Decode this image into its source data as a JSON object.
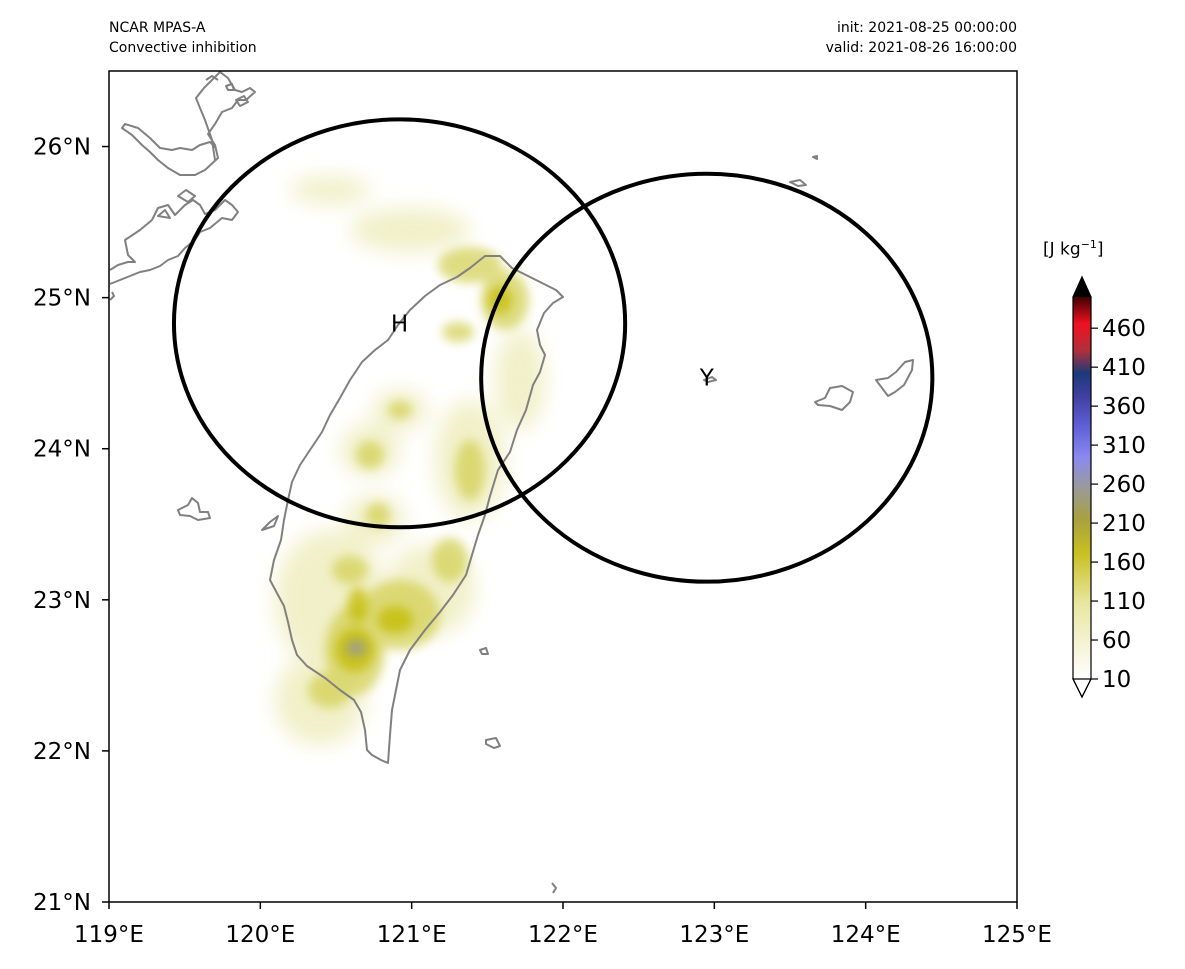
{
  "header": {
    "model": "NCAR MPAS-A",
    "field": "Convective inhibition",
    "init": "init: 2021-08-25 00:00:00",
    "valid": "valid: 2021-08-26 16:00:00"
  },
  "map": {
    "lon_range": [
      119,
      125
    ],
    "lat_range": [
      21,
      26.5
    ],
    "x_ticks": [
      "119°E",
      "120°E",
      "121°E",
      "122°E",
      "123°E",
      "124°E",
      "125°E"
    ],
    "y_ticks": [
      "21°N",
      "22°N",
      "23°N",
      "24°N",
      "25°N",
      "26°N"
    ],
    "coastline_color": "#808080"
  },
  "stations": [
    {
      "id": "H",
      "lon": 120.92,
      "lat": 24.83,
      "radius_deg_lat": 1.35
    },
    {
      "id": "Y",
      "lon": 122.95,
      "lat": 24.47,
      "radius_deg_lat": 1.35
    }
  ],
  "colorbar": {
    "units_main": "[J kg",
    "units_sup": "−1",
    "units_end": "]",
    "labels": [
      "10",
      "60",
      "110",
      "160",
      "210",
      "260",
      "310",
      "360",
      "410",
      "460"
    ],
    "range": [
      10,
      500
    ],
    "extend": "both"
  }
}
